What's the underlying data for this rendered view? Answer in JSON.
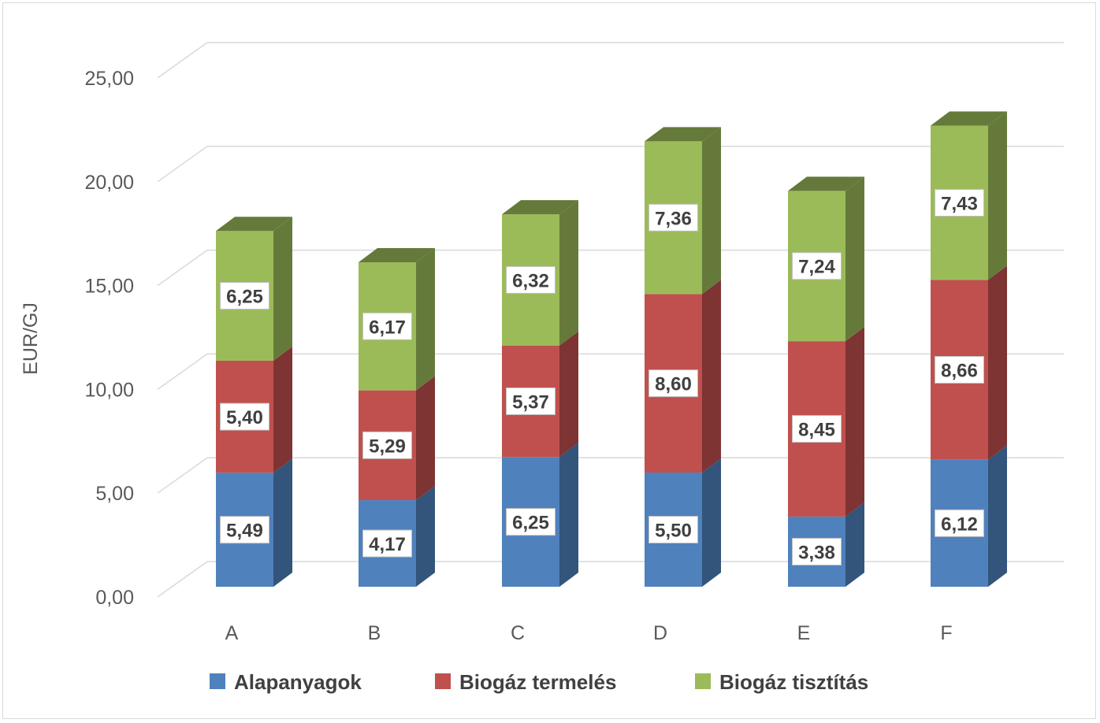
{
  "chart_data": {
    "type": "bar",
    "stacked": true,
    "three_d": true,
    "categories": [
      "A",
      "B",
      "C",
      "D",
      "E",
      "F"
    ],
    "series": [
      {
        "name": "Alapanyagok",
        "color": "#4f81bd",
        "values": [
          5.49,
          4.17,
          6.25,
          5.5,
          3.38,
          6.12
        ],
        "labels": [
          "5,49",
          "4,17",
          "6,25",
          "5,50",
          "3,38",
          "6,12"
        ]
      },
      {
        "name": "Biogáz termelés",
        "color": "#c0504d",
        "values": [
          5.4,
          5.29,
          5.37,
          8.6,
          8.45,
          8.66
        ],
        "labels": [
          "5,40",
          "5,29",
          "5,37",
          "8,60",
          "8,45",
          "8,66"
        ]
      },
      {
        "name": "Biogáz tisztítás",
        "color": "#9bbb59",
        "values": [
          6.25,
          6.17,
          6.32,
          7.36,
          7.24,
          7.43
        ],
        "labels": [
          "6,25",
          "6,17",
          "6,32",
          "7,36",
          "7,24",
          "7,43"
        ]
      }
    ],
    "ylabel": "EUR/GJ",
    "xlabel": "",
    "ylim": [
      0,
      25
    ],
    "yticks": [
      0,
      5,
      10,
      15,
      20,
      25
    ],
    "ytick_labels": [
      "0,00",
      "5,00",
      "10,00",
      "15,00",
      "20,00",
      "25,00"
    ],
    "grid": true,
    "legend_position": "bottom"
  }
}
